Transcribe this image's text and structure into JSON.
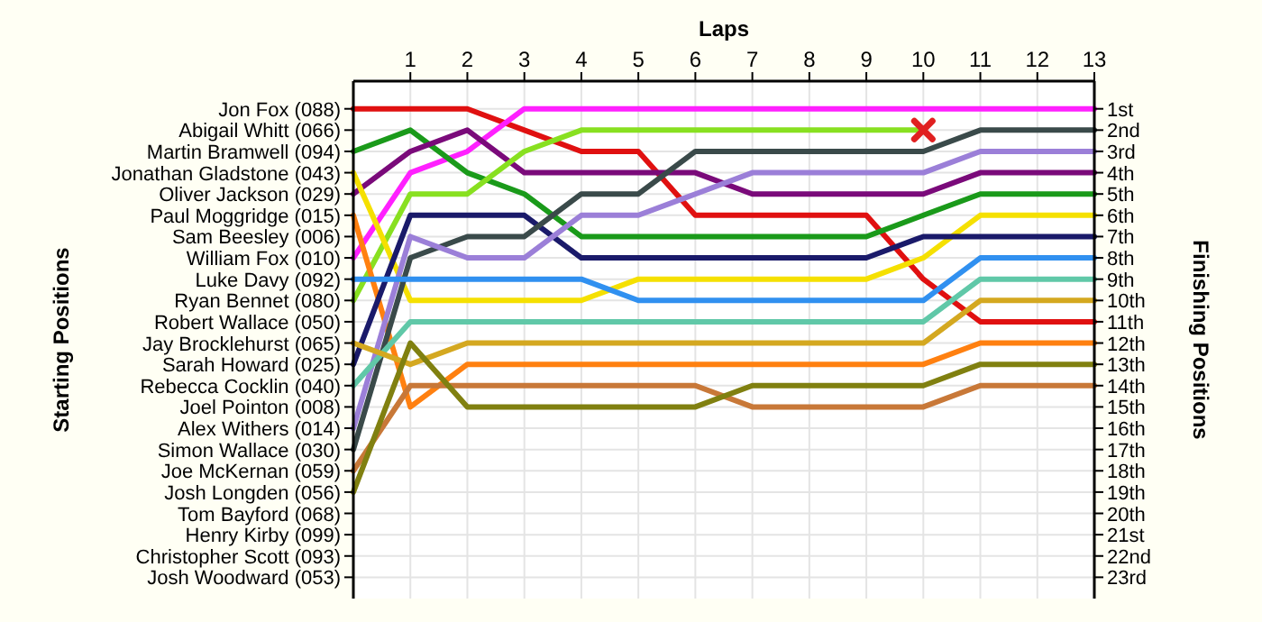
{
  "chart_data": {
    "type": "line",
    "xlabel": "Laps",
    "ylabel": "Finishing Positions",
    "x": [
      0,
      1,
      2,
      3,
      4,
      5,
      6,
      7,
      8,
      9,
      10,
      11,
      12,
      13
    ],
    "xlim": [
      0,
      13
    ],
    "xticks": [
      1,
      2,
      3,
      4,
      5,
      6,
      7,
      8,
      9,
      10,
      11,
      12,
      13
    ],
    "ylim": [
      24,
      -0.3
    ],
    "yticks": [
      {
        "value": 1,
        "label": "1st"
      },
      {
        "value": 2,
        "label": "2nd"
      },
      {
        "value": 3,
        "label": "3rd"
      },
      {
        "value": 4,
        "label": "4th"
      },
      {
        "value": 5,
        "label": "5th"
      },
      {
        "value": 6,
        "label": "6th"
      },
      {
        "value": 7,
        "label": "7th"
      },
      {
        "value": 8,
        "label": "8th"
      },
      {
        "value": 9,
        "label": "9th"
      },
      {
        "value": 10,
        "label": "10th"
      },
      {
        "value": 11,
        "label": "11th"
      },
      {
        "value": 12,
        "label": "12th"
      },
      {
        "value": 13,
        "label": "13th"
      },
      {
        "value": 14,
        "label": "14th"
      },
      {
        "value": 15,
        "label": "15th"
      },
      {
        "value": 16,
        "label": "16th"
      },
      {
        "value": 17,
        "label": "17th"
      },
      {
        "value": 18,
        "label": "18th"
      },
      {
        "value": 19,
        "label": "19th"
      },
      {
        "value": 20,
        "label": "20th"
      },
      {
        "value": 21,
        "label": "21st"
      },
      {
        "value": 22,
        "label": "22nd"
      },
      {
        "value": 23,
        "label": "23rd"
      }
    ],
    "annotations": [
      "Starting Positions",
      "Jon Fox (088)",
      "Abigail Whitt (066)",
      "Martin Bramwell (094)",
      "Jonathan Gladstone (043)",
      "Oliver Jackson (029)",
      "Paul Moggridge (015)",
      "Sam Beesley (006)",
      "William Fox (010)",
      "Luke Davy (092)",
      "Ryan Bennet (080)",
      "Robert Wallace (050)",
      "Jay Brocklehurst (065)",
      "Sarah Howard (025)",
      "Rebecca Cocklin (040)",
      "Joel Pointon (008)",
      "Alex Withers (014)",
      "Simon Wallace (030)",
      "Joe McKernan (059)",
      "Josh Longden (056)",
      "Tom Bayford (068)",
      "Henry Kirby (099)",
      "Christopher Scott (093)",
      "Josh Woodward (053)"
    ],
    "grid": true,
    "series": [
      {
        "color": "#e01010",
        "values": [
          1,
          1,
          1,
          2,
          3,
          3,
          6,
          6,
          6,
          6,
          9,
          11,
          11,
          11
        ]
      },
      {
        "color": "#ff20ff",
        "values": [
          8,
          4,
          3,
          1,
          1,
          1,
          1,
          1,
          1,
          1,
          1,
          1,
          1,
          1
        ]
      },
      {
        "color": "#1a9a1a",
        "values": [
          3,
          2,
          4,
          5,
          7,
          7,
          7,
          7,
          7,
          7,
          6,
          5,
          5,
          5
        ]
      },
      {
        "color": "#7a0a7a",
        "values": [
          5,
          3,
          2,
          4,
          4,
          4,
          4,
          5,
          5,
          5,
          5,
          4,
          4,
          4
        ]
      },
      {
        "color": "#88e020",
        "values": [
          10,
          5,
          5,
          3,
          2,
          2,
          2,
          2,
          2,
          2,
          2,
          null,
          null,
          null
        ]
      },
      {
        "color": "#f5e000",
        "values": [
          4,
          10,
          10,
          10,
          10,
          9,
          9,
          9,
          9,
          9,
          8,
          6,
          6,
          6
        ]
      },
      {
        "color": "#ff8010",
        "values": [
          6,
          15,
          13,
          13,
          13,
          13,
          13,
          13,
          13,
          13,
          13,
          12,
          12,
          12
        ]
      },
      {
        "color": "#1a1a6a",
        "values": [
          13,
          6,
          6,
          6,
          8,
          8,
          8,
          8,
          8,
          8,
          7,
          7,
          7,
          7
        ]
      },
      {
        "color": "#3a4a4a",
        "values": [
          17,
          8,
          7,
          7,
          5,
          5,
          3,
          3,
          3,
          3,
          3,
          2,
          2,
          2
        ]
      },
      {
        "color": "#9b7fd8",
        "values": [
          16,
          7,
          8,
          8,
          6,
          6,
          5,
          4,
          4,
          4,
          4,
          3,
          3,
          3
        ]
      },
      {
        "color": "#3090f0",
        "values": [
          9,
          9,
          9,
          9,
          9,
          10,
          10,
          10,
          10,
          10,
          10,
          8,
          8,
          8
        ]
      },
      {
        "color": "#60c8a8",
        "values": [
          14,
          11,
          11,
          11,
          11,
          11,
          11,
          11,
          11,
          11,
          11,
          9,
          9,
          9
        ]
      },
      {
        "color": "#d4a820",
        "values": [
          12,
          13,
          12,
          12,
          12,
          12,
          12,
          12,
          12,
          12,
          12,
          10,
          10,
          10
        ]
      },
      {
        "color": "#c87838",
        "values": [
          18,
          14,
          14,
          14,
          14,
          14,
          14,
          15,
          15,
          15,
          15,
          14,
          14,
          14
        ]
      },
      {
        "color": "#808010",
        "values": [
          19,
          12,
          15,
          15,
          15,
          15,
          15,
          14,
          14,
          14,
          14,
          13,
          13,
          13
        ]
      },
      {
        "type": "scatter",
        "marker": "cross",
        "color": "#e02020",
        "x": [
          10
        ],
        "values": [
          2
        ]
      }
    ]
  }
}
